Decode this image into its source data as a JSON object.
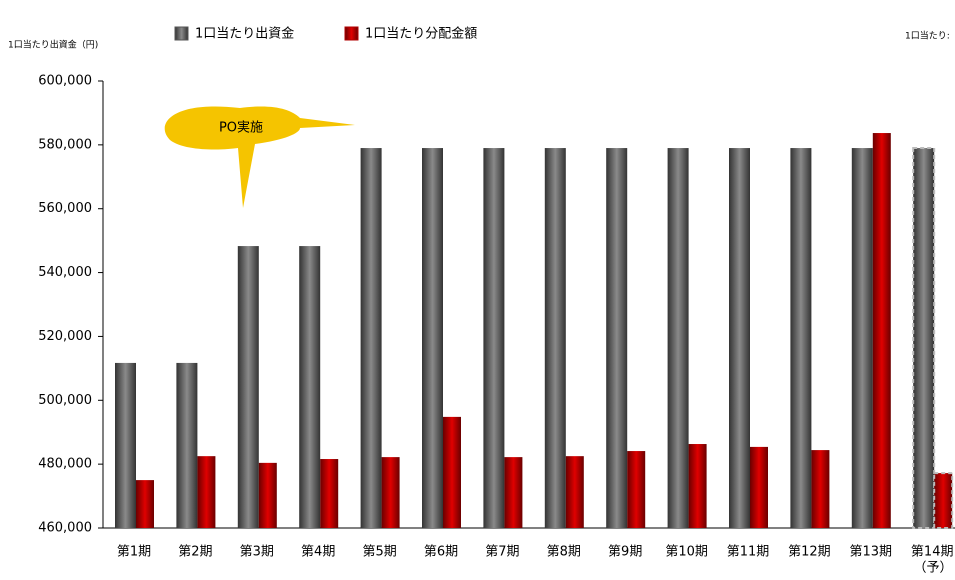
{
  "chart_data": {
    "type": "bar",
    "y_axis_label": "1口当たり出資金（円)",
    "y2_axis_label": "1口当たり:",
    "annotation": "PO実施",
    "forecast_note": "（予）",
    "categories": [
      "第1期",
      "第2期",
      "第3期",
      "第4期",
      "第5期",
      "第6期",
      "第7期",
      "第8期",
      "第9期",
      "第10期",
      "第11期",
      "第12期",
      "第13期",
      "第14期"
    ],
    "series": [
      {
        "name": "1口当たり出資金",
        "color": "#555555",
        "values": [
          511700,
          511700,
          548300,
          548300,
          579000,
          579000,
          579000,
          579000,
          579000,
          579000,
          579000,
          579000,
          579000,
          579000
        ]
      },
      {
        "name": "1口当たり分配金額",
        "color": "#b00000",
        "values": [
          475000,
          482500,
          480400,
          481600,
          482200,
          494800,
          482200,
          482500,
          484100,
          486300,
          485400,
          484400,
          583700,
          477200
        ]
      }
    ],
    "ylim": [
      460000,
      600000
    ],
    "yticks": [
      {
        "value": 460000,
        "label": "460,000"
      },
      {
        "value": 480000,
        "label": "480,000"
      },
      {
        "value": 500000,
        "label": "500,000"
      },
      {
        "value": 520000,
        "label": "520,000"
      },
      {
        "value": 540000,
        "label": "540,000"
      },
      {
        "value": 560000,
        "label": "560,000"
      },
      {
        "value": 580000,
        "label": "580,000"
      },
      {
        "value": 600000,
        "label": "600,000"
      }
    ]
  }
}
